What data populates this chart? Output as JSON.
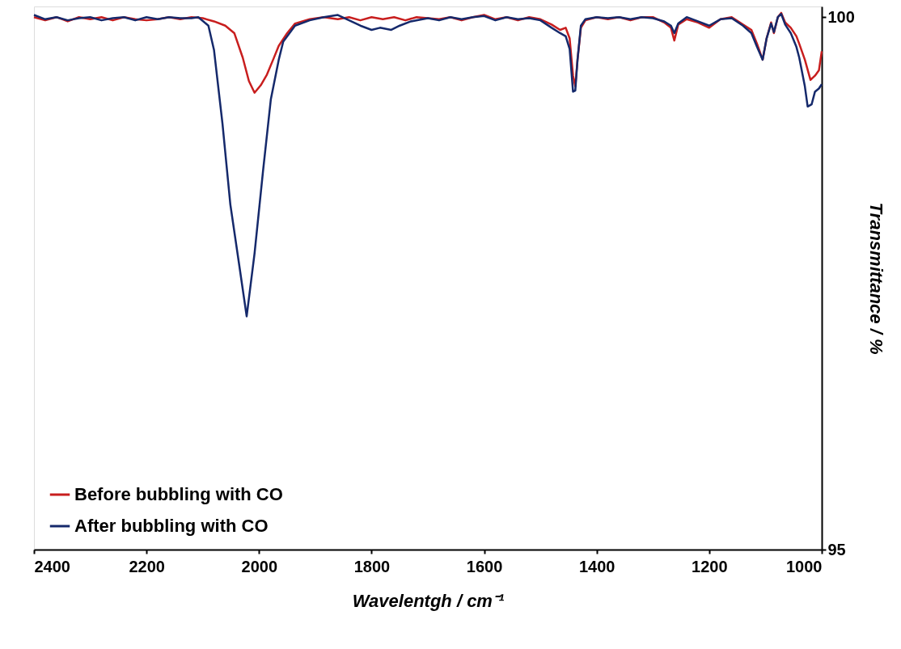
{
  "chart_data": {
    "type": "line",
    "xlabel": "Wavelentgh / cm⁻¹",
    "ylabel": "Transmittance / %",
    "xlim": [
      2400,
      1000
    ],
    "xticks": [
      2400,
      2200,
      2000,
      1800,
      1600,
      1400,
      1200,
      1000
    ],
    "ylim": [
      95,
      100.1
    ],
    "yticks": [
      95,
      100
    ],
    "grid": false,
    "legend": "bottom left",
    "marker": "none",
    "line_style": "solid",
    "series": [
      {
        "name": "Before bubbling with CO",
        "color": "#c81e1e",
        "x": [
          2400,
          2380,
          2360,
          2340,
          2320,
          2300,
          2280,
          2260,
          2240,
          2220,
          2200,
          2180,
          2160,
          2140,
          2120,
          2100,
          2080,
          2060,
          2044,
          2029,
          2018,
          2008,
          1997,
          1986,
          1975,
          1965,
          1950,
          1936,
          1910,
          1885,
          1860,
          1840,
          1820,
          1800,
          1780,
          1760,
          1740,
          1720,
          1700,
          1680,
          1660,
          1640,
          1620,
          1600,
          1580,
          1560,
          1540,
          1520,
          1500,
          1480,
          1465,
          1455,
          1448,
          1442,
          1438,
          1434,
          1428,
          1420,
          1400,
          1380,
          1360,
          1340,
          1320,
          1300,
          1280,
          1268,
          1262,
          1255,
          1240,
          1220,
          1200,
          1180,
          1160,
          1140,
          1125,
          1115,
          1105,
          1098,
          1090,
          1085,
          1078,
          1072,
          1065,
          1055,
          1045,
          1040,
          1030,
          1020,
          1012,
          1005,
          1000
        ],
        "values": [
          100.0,
          99.97,
          100.0,
          99.96,
          100.0,
          99.98,
          100.0,
          99.97,
          100.0,
          99.98,
          99.97,
          99.98,
          100.0,
          99.98,
          100.0,
          99.99,
          99.96,
          99.92,
          99.85,
          99.62,
          99.4,
          99.29,
          99.36,
          99.46,
          99.6,
          99.73,
          99.85,
          99.94,
          99.98,
          100.0,
          99.98,
          100.0,
          99.97,
          100.0,
          99.98,
          100.0,
          99.97,
          100.0,
          99.99,
          99.98,
          100.0,
          99.97,
          100.0,
          100.02,
          99.98,
          100.0,
          99.97,
          100.0,
          99.98,
          99.93,
          99.88,
          99.9,
          99.8,
          99.45,
          99.35,
          99.6,
          99.9,
          99.97,
          100.0,
          99.98,
          100.0,
          99.97,
          100.0,
          100.0,
          99.95,
          99.9,
          99.78,
          99.93,
          99.98,
          99.95,
          99.9,
          99.98,
          100.0,
          99.93,
          99.88,
          99.75,
          99.6,
          99.8,
          99.95,
          99.85,
          100.0,
          100.04,
          99.95,
          99.9,
          99.82,
          99.75,
          99.6,
          99.41,
          99.45,
          99.5,
          99.68
        ]
      },
      {
        "name": "After bubbling with CO",
        "color": "#15296b",
        "x": [
          2400,
          2380,
          2360,
          2340,
          2320,
          2300,
          2280,
          2260,
          2240,
          2220,
          2200,
          2180,
          2160,
          2140,
          2120,
          2108,
          2090,
          2080,
          2065,
          2051,
          2036,
          2022,
          2008,
          1993,
          1979,
          1965,
          1957,
          1936,
          1910,
          1885,
          1860,
          1840,
          1820,
          1800,
          1785,
          1765,
          1750,
          1730,
          1700,
          1680,
          1660,
          1640,
          1620,
          1600,
          1580,
          1560,
          1540,
          1520,
          1500,
          1480,
          1465,
          1455,
          1448,
          1442,
          1438,
          1434,
          1428,
          1420,
          1400,
          1380,
          1360,
          1340,
          1320,
          1300,
          1280,
          1268,
          1262,
          1255,
          1240,
          1220,
          1200,
          1180,
          1160,
          1140,
          1125,
          1115,
          1105,
          1098,
          1090,
          1085,
          1078,
          1072,
          1065,
          1055,
          1045,
          1040,
          1030,
          1025,
          1018,
          1012,
          1005,
          1000
        ],
        "values": [
          100.02,
          99.98,
          100.0,
          99.97,
          99.99,
          100.0,
          99.97,
          99.99,
          100.0,
          99.97,
          100.0,
          99.98,
          100.0,
          99.99,
          99.99,
          100.0,
          99.92,
          99.69,
          99.0,
          98.24,
          97.7,
          97.19,
          97.78,
          98.55,
          99.23,
          99.6,
          99.77,
          99.92,
          99.97,
          100.0,
          100.02,
          99.97,
          99.92,
          99.88,
          99.9,
          99.88,
          99.92,
          99.96,
          99.99,
          99.97,
          100.0,
          99.98,
          100.0,
          100.01,
          99.97,
          100.0,
          99.98,
          99.99,
          99.97,
          99.9,
          99.85,
          99.82,
          99.7,
          99.3,
          99.31,
          99.6,
          99.92,
          99.98,
          100.0,
          99.99,
          100.0,
          99.98,
          100.0,
          99.99,
          99.96,
          99.92,
          99.85,
          99.94,
          100.0,
          99.96,
          99.92,
          99.98,
          99.99,
          99.92,
          99.85,
          99.72,
          99.6,
          99.8,
          99.94,
          99.86,
          100.0,
          100.03,
          99.93,
          99.85,
          99.72,
          99.62,
          99.35,
          99.16,
          99.18,
          99.3,
          99.33,
          99.37
        ]
      }
    ]
  }
}
